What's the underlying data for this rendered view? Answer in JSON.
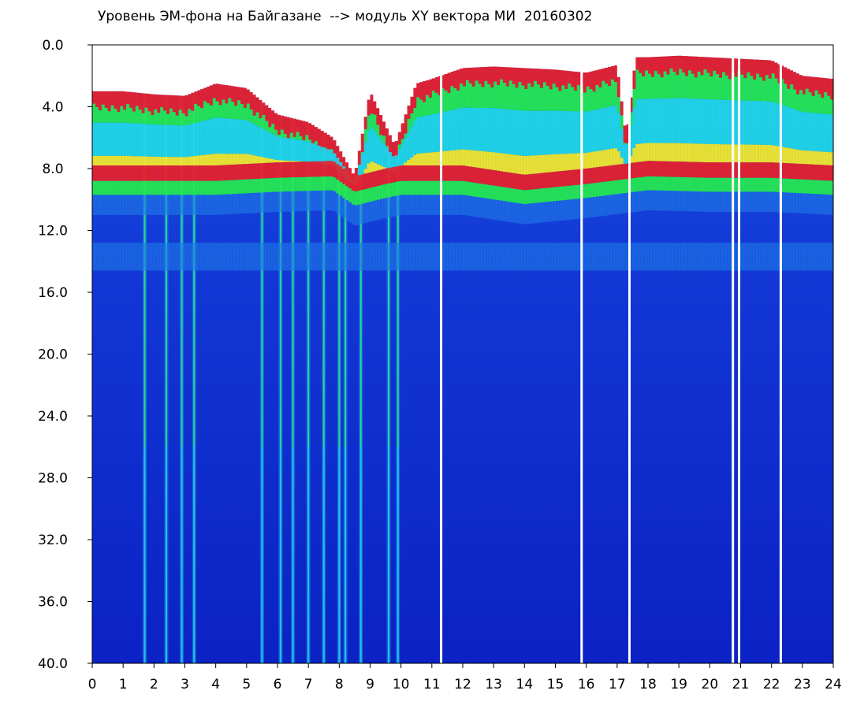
{
  "chart_data": {
    "type": "heatmap",
    "title": "Уровень ЭМ-фона на Байгазане  --> модуль XY вектора МИ  20160302",
    "xlabel": "",
    "ylabel": "",
    "x_range": [
      0,
      24
    ],
    "y_range": [
      0,
      40
    ],
    "y_inverted": true,
    "x_ticks": [
      "0",
      "1",
      "2",
      "3",
      "4",
      "5",
      "6",
      "7",
      "8",
      "9",
      "10",
      "11",
      "12",
      "13",
      "14",
      "15",
      "16",
      "17",
      "18",
      "19",
      "20",
      "21",
      "22",
      "23",
      "24"
    ],
    "y_ticks": [
      "0.0",
      "4.0",
      "8.0",
      "12.0",
      "16.0",
      "20.0",
      "24.0",
      "28.0",
      "32.0",
      "36.0",
      "40.0"
    ],
    "colormap": [
      "#ffffff",
      "#e8202a",
      "#f3e92a",
      "#25e84f",
      "#21d8e6",
      "#1f7be8",
      "#0f2fd8",
      "#0a1fc0"
    ],
    "series": [
      {
        "x": [
          0.0,
          1.0,
          2.0,
          3.0,
          4.0,
          5.0,
          6.0,
          7.0,
          7.8,
          8.5,
          9.0,
          9.8,
          10.5,
          11.0,
          12.0,
          13.0,
          14.0,
          15.0,
          16.0,
          17.0,
          17.3,
          17.6,
          18.0,
          19.0,
          20.0,
          21.0,
          22.0,
          23.0,
          24.0
        ],
        "y": [
          3.0,
          3.0,
          3.2,
          3.3,
          2.5,
          2.8,
          4.5,
          5.0,
          6.0,
          8.5,
          3.0,
          6.5,
          2.5,
          2.2,
          1.5,
          1.4,
          1.5,
          1.6,
          1.8,
          1.3,
          6.0,
          0.8,
          0.8,
          0.7,
          0.8,
          0.9,
          1.0,
          2.0,
          2.2
        ]
      },
      {
        "x": [
          0.0,
          2.0,
          4.0,
          6.0,
          7.8,
          8.5,
          9.5,
          10.0,
          12.0,
          14.0,
          16.0,
          18.0,
          20.0,
          22.0,
          24.0
        ],
        "y": [
          8.8,
          8.8,
          8.8,
          8.6,
          8.5,
          9.5,
          9.0,
          8.8,
          8.8,
          9.4,
          9.0,
          8.5,
          8.6,
          8.6,
          8.8
        ]
      }
    ],
    "bursts": [
      1.7,
      2.4,
      2.9,
      3.3,
      5.5,
      6.1,
      6.5,
      7.0,
      7.5,
      8.0,
      8.2,
      8.7,
      9.6,
      9.9
    ],
    "gaps": [
      11.3,
      15.85,
      17.4,
      20.75,
      20.95,
      22.3
    ],
    "grid": false,
    "legend": "none"
  }
}
